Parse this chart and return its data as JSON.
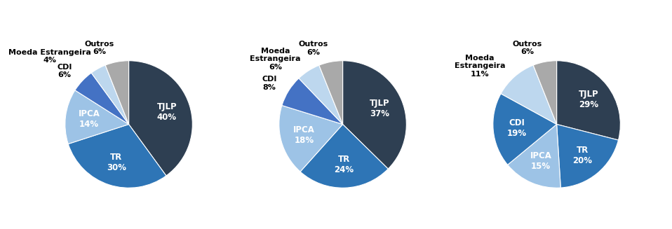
{
  "charts": [
    {
      "labels": [
        "TJLP",
        "TR",
        "IPCA",
        "CDI",
        "Moeda Estrangeira",
        "Outros"
      ],
      "values": [
        40,
        30,
        14,
        6,
        4,
        6
      ],
      "startangle": 90
    },
    {
      "labels": [
        "TJLP",
        "TR",
        "IPCA",
        "CDI",
        "Moeda Estrangeira",
        "Outros"
      ],
      "values": [
        37,
        24,
        18,
        8,
        6,
        6
      ],
      "startangle": 90
    },
    {
      "labels": [
        "TJLP",
        "TR",
        "IPCA",
        "CDI",
        "Moeda Estrangeira",
        "Outros"
      ],
      "values": [
        29,
        20,
        15,
        19,
        11,
        6
      ],
      "startangle": 90
    }
  ],
  "color_map": {
    "TJLP": "#2E3F52",
    "TR": "#2E75B6",
    "IPCA": "#9DC3E6",
    "CDI": "#2E75B6",
    "Moeda Estrangeira": "#BDD7EE",
    "Outros": "#A9A9A9"
  },
  "inside_text_color": {
    "TJLP": "white",
    "TR": "white",
    "IPCA": "white",
    "CDI": "white",
    "Moeda Estrangeira": "black",
    "Outros": "white"
  },
  "background_color": "#FFFFFF",
  "label_fontsize": 8.5,
  "label_fontsize_small": 8.0
}
